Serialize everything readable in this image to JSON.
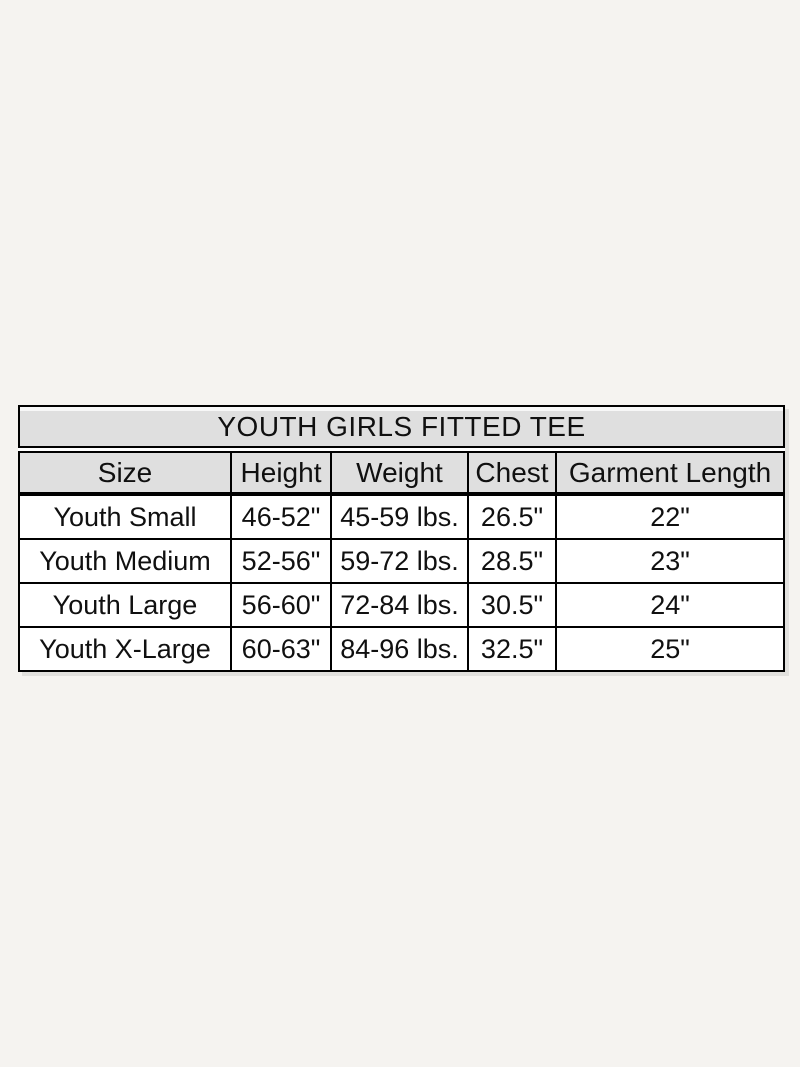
{
  "page": {
    "background_color": "#f5f3f0"
  },
  "chart_data": {
    "type": "table",
    "title": "YOUTH GIRLS FITTED TEE",
    "columns": [
      "Size",
      "Height",
      "Weight",
      "Chest",
      "Garment Length"
    ],
    "rows": [
      [
        "Youth Small",
        "46-52\"",
        "45-59 lbs.",
        "26.5\"",
        "22\""
      ],
      [
        "Youth Medium",
        "52-56\"",
        "59-72 lbs.",
        "28.5\"",
        "23\""
      ],
      [
        "Youth Large",
        "56-60\"",
        "72-84 lbs.",
        "30.5\"",
        "24\""
      ],
      [
        "Youth X-Large",
        "60-63\"",
        "84-96 lbs.",
        "32.5\"",
        "25\""
      ]
    ],
    "layout_hints": {
      "header_bg": "#dfdfdf",
      "cell_bg": "#ffffff",
      "border_color": "#000000",
      "text_color": "#101010",
      "title_separator": "double-line",
      "header_separator": "thick-line"
    }
  }
}
